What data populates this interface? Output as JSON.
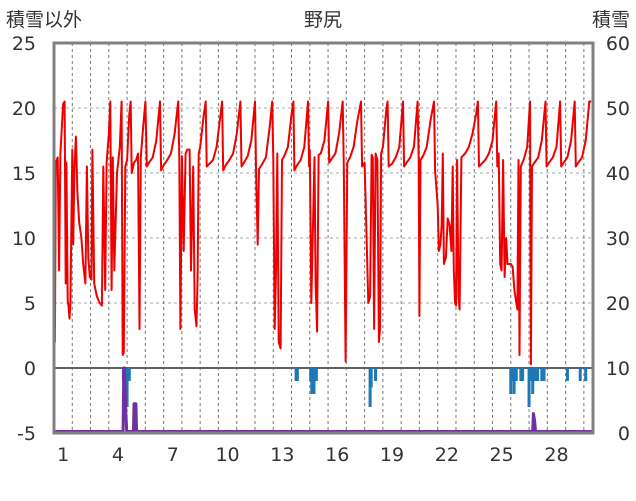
{
  "chart_data": {
    "type": "line",
    "title": "野尻",
    "ylabel_left": "積雪以外",
    "ylabel_right": "積雪",
    "ylim_left": [
      -5,
      25
    ],
    "ylim_right": [
      0,
      60
    ],
    "yticks_left": [
      "25",
      "20",
      "15",
      "10",
      "5",
      "0",
      "-5"
    ],
    "yticks_right": [
      "60",
      "50",
      "40",
      "30",
      "20",
      "10",
      "0"
    ],
    "xlim": [
      0,
      29.5
    ],
    "xticks": [
      "1",
      "4",
      "7",
      "10",
      "13",
      "16",
      "19",
      "22",
      "25",
      "28"
    ],
    "grid": true,
    "colors": {
      "temperature": "#ee0000",
      "precipitation": "#1f77b4",
      "snow_depth": "#7030a0",
      "frame": "#808080",
      "zero_line": "#606060"
    },
    "series": [
      {
        "type": "line",
        "axis": "left",
        "points": [
          [
            0.0,
            15.5
          ],
          [
            0.05,
            2
          ],
          [
            0.1,
            15.8
          ],
          [
            0.2,
            16.2
          ],
          [
            0.28,
            7.5
          ],
          [
            0.35,
            16.5
          ],
          [
            0.5,
            20.3
          ],
          [
            0.58,
            20.5
          ],
          [
            0.64,
            6.5
          ],
          [
            0.68,
            15.8
          ],
          [
            0.75,
            5.2
          ],
          [
            0.8,
            4.7
          ],
          [
            0.85,
            3.8
          ],
          [
            0.9,
            5
          ],
          [
            1.0,
            16.8
          ],
          [
            1.05,
            9.5
          ],
          [
            1.12,
            15.5
          ],
          [
            1.2,
            17.8
          ],
          [
            1.28,
            13.5
          ],
          [
            1.38,
            11.2
          ],
          [
            1.5,
            10
          ],
          [
            1.6,
            8
          ],
          [
            1.72,
            6.5
          ],
          [
            1.8,
            15.5
          ],
          [
            1.88,
            8.5
          ],
          [
            1.96,
            7
          ],
          [
            2.05,
            6.8
          ],
          [
            2.1,
            16.8
          ],
          [
            2.2,
            6.5
          ],
          [
            2.35,
            5.5
          ],
          [
            2.5,
            5
          ],
          [
            2.62,
            4.8
          ],
          [
            2.7,
            15.5
          ],
          [
            2.8,
            6
          ],
          [
            2.88,
            15.8
          ],
          [
            3.0,
            18
          ],
          [
            3.08,
            20.5
          ],
          [
            3.15,
            6
          ],
          [
            3.22,
            16.2
          ],
          [
            3.3,
            7.5
          ],
          [
            3.45,
            15
          ],
          [
            3.6,
            17
          ],
          [
            3.7,
            20.5
          ],
          [
            3.76,
            1
          ],
          [
            3.82,
            1.2
          ],
          [
            3.9,
            15.5
          ],
          [
            4.0,
            16
          ],
          [
            4.12,
            19.5
          ],
          [
            4.2,
            20.5
          ],
          [
            4.25,
            15
          ],
          [
            4.38,
            15.8
          ],
          [
            4.5,
            16
          ],
          [
            4.6,
            16.5
          ],
          [
            4.68,
            3
          ],
          [
            4.75,
            16.2
          ],
          [
            4.85,
            18
          ],
          [
            5.0,
            20.5
          ],
          [
            5.08,
            15.5
          ],
          [
            5.2,
            15.8
          ],
          [
            5.4,
            16.2
          ],
          [
            5.6,
            17.5
          ],
          [
            5.8,
            20.5
          ],
          [
            5.86,
            15.2
          ],
          [
            6.0,
            15.6
          ],
          [
            6.2,
            16
          ],
          [
            6.4,
            16.5
          ],
          [
            6.6,
            18
          ],
          [
            6.8,
            20.5
          ],
          [
            6.86,
            16.2
          ],
          [
            6.92,
            3
          ],
          [
            7.0,
            16.3
          ],
          [
            7.1,
            9
          ],
          [
            7.2,
            16.5
          ],
          [
            7.3,
            16.8
          ],
          [
            7.42,
            16.8
          ],
          [
            7.5,
            7.5
          ],
          [
            7.62,
            15.5
          ],
          [
            7.7,
            4.5
          ],
          [
            7.8,
            3.2
          ],
          [
            7.86,
            7
          ],
          [
            7.92,
            16.5
          ],
          [
            8.0,
            17
          ],
          [
            8.2,
            19.5
          ],
          [
            8.3,
            20.5
          ],
          [
            8.36,
            15.5
          ],
          [
            8.5,
            15.7
          ],
          [
            8.7,
            16
          ],
          [
            8.9,
            17
          ],
          [
            9.2,
            20.5
          ],
          [
            9.26,
            15.2
          ],
          [
            9.4,
            15.6
          ],
          [
            9.6,
            16
          ],
          [
            9.8,
            16.5
          ],
          [
            10.0,
            18
          ],
          [
            10.2,
            20.5
          ],
          [
            10.26,
            15.5
          ],
          [
            10.4,
            15.8
          ],
          [
            10.6,
            16.3
          ],
          [
            10.8,
            17.5
          ],
          [
            11.0,
            20.5
          ],
          [
            11.06,
            15
          ],
          [
            11.15,
            9.5
          ],
          [
            11.22,
            15.3
          ],
          [
            11.4,
            15.7
          ],
          [
            11.6,
            16.2
          ],
          [
            11.8,
            18.5
          ],
          [
            11.94,
            20.5
          ],
          [
            12.0,
            16
          ],
          [
            12.08,
            3
          ],
          [
            12.15,
            7.5
          ],
          [
            12.22,
            16.5
          ],
          [
            12.3,
            2
          ],
          [
            12.4,
            1.5
          ],
          [
            12.48,
            16
          ],
          [
            12.6,
            16.3
          ],
          [
            12.8,
            17
          ],
          [
            13.0,
            19.5
          ],
          [
            13.1,
            20.5
          ],
          [
            13.16,
            15.2
          ],
          [
            13.3,
            15.6
          ],
          [
            13.5,
            16
          ],
          [
            13.7,
            17
          ],
          [
            13.9,
            20.5
          ],
          [
            13.96,
            15.5
          ],
          [
            14.0,
            16.8
          ],
          [
            14.08,
            5
          ],
          [
            14.16,
            10
          ],
          [
            14.26,
            16.2
          ],
          [
            14.32,
            6.5
          ],
          [
            14.4,
            2.8
          ],
          [
            14.48,
            16.4
          ],
          [
            14.6,
            16.5
          ],
          [
            14.8,
            17.5
          ],
          [
            15.0,
            20.5
          ],
          [
            15.06,
            15.8
          ],
          [
            15.2,
            16.1
          ],
          [
            15.4,
            16.5
          ],
          [
            15.6,
            18
          ],
          [
            15.8,
            20.5
          ],
          [
            15.86,
            15.5
          ],
          [
            15.96,
            0.5
          ],
          [
            16.05,
            15.8
          ],
          [
            16.2,
            16.2
          ],
          [
            16.4,
            17
          ],
          [
            16.6,
            19
          ],
          [
            16.8,
            20.5
          ],
          [
            16.86,
            15.5
          ],
          [
            17.0,
            15.8
          ],
          [
            17.2,
            5
          ],
          [
            17.3,
            5.5
          ],
          [
            17.38,
            16.4
          ],
          [
            17.45,
            16.2
          ],
          [
            17.52,
            3
          ],
          [
            17.6,
            16.5
          ],
          [
            17.7,
            16
          ],
          [
            17.78,
            2
          ],
          [
            17.84,
            3
          ],
          [
            17.9,
            16.5
          ],
          [
            18.0,
            17
          ],
          [
            18.2,
            20
          ],
          [
            18.26,
            20.5
          ],
          [
            18.32,
            15.5
          ],
          [
            18.5,
            15.7
          ],
          [
            18.7,
            16.2
          ],
          [
            18.9,
            17
          ],
          [
            19.1,
            20.5
          ],
          [
            19.16,
            15.5
          ],
          [
            19.3,
            15.8
          ],
          [
            19.5,
            16.2
          ],
          [
            19.7,
            17
          ],
          [
            19.9,
            20.5
          ],
          [
            19.96,
            16
          ],
          [
            20.0,
            4
          ],
          [
            20.06,
            16
          ],
          [
            20.2,
            16.3
          ],
          [
            20.4,
            17
          ],
          [
            20.6,
            19
          ],
          [
            20.8,
            20.5
          ],
          [
            20.86,
            15.2
          ],
          [
            21.0,
            12.5
          ],
          [
            21.06,
            9
          ],
          [
            21.15,
            9.5
          ],
          [
            21.22,
            11
          ],
          [
            21.28,
            16.5
          ],
          [
            21.34,
            8
          ],
          [
            21.45,
            8.5
          ],
          [
            21.55,
            11.5
          ],
          [
            21.65,
            11
          ],
          [
            21.75,
            9
          ],
          [
            21.82,
            15.5
          ],
          [
            21.88,
            7.5
          ],
          [
            21.95,
            5
          ],
          [
            22.0,
            4.8
          ],
          [
            22.06,
            16
          ],
          [
            22.14,
            5.5
          ],
          [
            22.2,
            4.5
          ],
          [
            22.3,
            16.2
          ],
          [
            22.5,
            16.5
          ],
          [
            22.7,
            17
          ],
          [
            22.9,
            18
          ],
          [
            23.1,
            19.5
          ],
          [
            23.2,
            20.5
          ],
          [
            23.26,
            15.5
          ],
          [
            23.4,
            15.7
          ],
          [
            23.6,
            16
          ],
          [
            23.8,
            16.5
          ],
          [
            24.0,
            17.5
          ],
          [
            24.2,
            20.5
          ],
          [
            24.26,
            15.5
          ],
          [
            24.34,
            16.5
          ],
          [
            24.42,
            8
          ],
          [
            24.5,
            7.5
          ],
          [
            24.58,
            16
          ],
          [
            24.66,
            7
          ],
          [
            24.75,
            10
          ],
          [
            24.82,
            8
          ],
          [
            24.9,
            8
          ],
          [
            25.0,
            8
          ],
          [
            25.1,
            7.8
          ],
          [
            25.2,
            6
          ],
          [
            25.3,
            5
          ],
          [
            25.36,
            4.5
          ],
          [
            25.42,
            16
          ],
          [
            25.48,
            1
          ],
          [
            25.55,
            15.5
          ],
          [
            25.7,
            16
          ],
          [
            25.9,
            17
          ],
          [
            26.05,
            20.5
          ],
          [
            26.1,
            0.3
          ],
          [
            26.16,
            15.5
          ],
          [
            26.3,
            15.8
          ],
          [
            26.5,
            16.2
          ],
          [
            26.7,
            17.5
          ],
          [
            26.9,
            20.5
          ],
          [
            26.96,
            15.5
          ],
          [
            27.1,
            15.8
          ],
          [
            27.3,
            16.2
          ],
          [
            27.5,
            17
          ],
          [
            27.7,
            20.5
          ],
          [
            27.76,
            15.5
          ],
          [
            27.9,
            15.8
          ],
          [
            28.1,
            16.2
          ],
          [
            28.3,
            17.5
          ],
          [
            28.5,
            20.5
          ],
          [
            28.56,
            15.5
          ],
          [
            28.7,
            15.8
          ],
          [
            28.9,
            16.2
          ],
          [
            29.1,
            17.5
          ],
          [
            29.3,
            20.5
          ],
          [
            29.4,
            20.5
          ]
        ]
      },
      {
        "type": "bar",
        "axis": "left",
        "bars": [
          [
            3.8,
            -1
          ],
          [
            3.87,
            -2
          ],
          [
            3.93,
            -1.5
          ],
          [
            4.0,
            -3
          ],
          [
            4.05,
            -1
          ],
          [
            4.12,
            -1
          ],
          [
            13.25,
            -1
          ],
          [
            13.32,
            -1
          ],
          [
            14.05,
            -1
          ],
          [
            14.11,
            -2
          ],
          [
            14.17,
            -1
          ],
          [
            14.23,
            -2
          ],
          [
            14.3,
            -1
          ],
          [
            14.36,
            -1
          ],
          [
            17.3,
            -3
          ],
          [
            17.36,
            -1.5
          ],
          [
            17.6,
            -1
          ],
          [
            25.0,
            -2
          ],
          [
            25.06,
            -1
          ],
          [
            25.12,
            -1
          ],
          [
            25.18,
            -2
          ],
          [
            25.3,
            -1
          ],
          [
            25.55,
            -1
          ],
          [
            25.65,
            -1
          ],
          [
            26.0,
            -3
          ],
          [
            26.07,
            -1
          ],
          [
            26.14,
            -1
          ],
          [
            26.2,
            -2
          ],
          [
            26.27,
            -1
          ],
          [
            26.34,
            -1
          ],
          [
            26.4,
            -1
          ],
          [
            26.47,
            -1
          ],
          [
            26.7,
            -1
          ],
          [
            26.76,
            -1
          ],
          [
            26.82,
            -1
          ],
          [
            28.1,
            -1
          ],
          [
            28.8,
            -1
          ],
          [
            29.1,
            -1
          ]
        ]
      },
      {
        "type": "line",
        "axis": "right",
        "points": [
          [
            0.0,
            0
          ],
          [
            3.78,
            0
          ],
          [
            3.82,
            10
          ],
          [
            3.86,
            10
          ],
          [
            3.9,
            5
          ],
          [
            3.98,
            0
          ],
          [
            4.35,
            0
          ],
          [
            4.38,
            4.5
          ],
          [
            4.48,
            4.5
          ],
          [
            4.52,
            0
          ],
          [
            26.2,
            0
          ],
          [
            26.24,
            3
          ],
          [
            26.3,
            2
          ],
          [
            26.36,
            0
          ],
          [
            29.5,
            0
          ]
        ]
      }
    ]
  }
}
